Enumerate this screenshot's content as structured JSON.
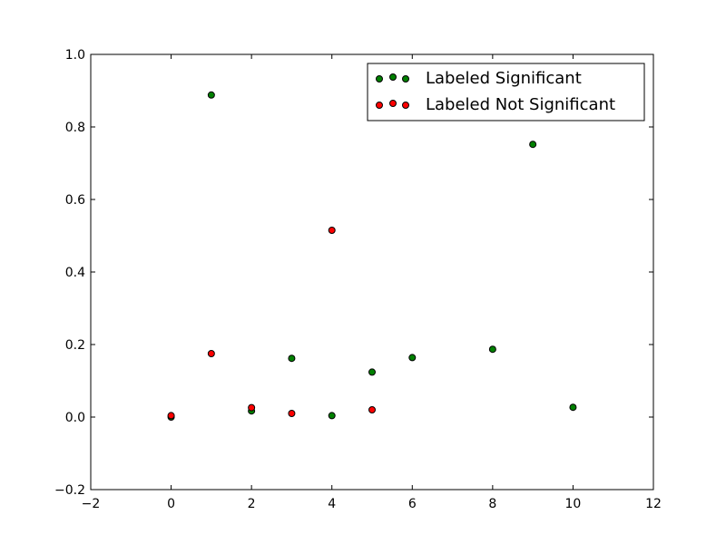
{
  "chart_data": {
    "type": "scatter",
    "title": "",
    "xlabel": "",
    "ylabel": "",
    "xlim": [
      -2,
      12
    ],
    "ylim": [
      -0.2,
      1.0
    ],
    "xticks": [
      "−2",
      "0",
      "2",
      "4",
      "6",
      "8",
      "10",
      "12"
    ],
    "yticks": [
      "−0.2",
      "0.0",
      "0.2",
      "0.4",
      "0.6",
      "0.8",
      "1.0"
    ],
    "xtick_values": [
      -2,
      0,
      2,
      4,
      6,
      8,
      10,
      12
    ],
    "ytick_values": [
      -0.2,
      0.0,
      0.2,
      0.4,
      0.6,
      0.8,
      1.0
    ],
    "grid": false,
    "legend_position": "top-right",
    "series": [
      {
        "name": "Labeled Significant",
        "color": "#008000",
        "points": [
          {
            "x": 0,
            "y": 0.0
          },
          {
            "x": 1,
            "y": 0.888
          },
          {
            "x": 2,
            "y": 0.017
          },
          {
            "x": 3,
            "y": 0.162
          },
          {
            "x": 4,
            "y": 0.004
          },
          {
            "x": 5,
            "y": 0.124
          },
          {
            "x": 6,
            "y": 0.164
          },
          {
            "x": 8,
            "y": 0.187
          },
          {
            "x": 9,
            "y": 0.752
          },
          {
            "x": 10,
            "y": 0.027
          }
        ]
      },
      {
        "name": "Labeled Not Significant",
        "color": "#ff0000",
        "points": [
          {
            "x": 0,
            "y": 0.004
          },
          {
            "x": 1,
            "y": 0.175
          },
          {
            "x": 2,
            "y": 0.026
          },
          {
            "x": 3,
            "y": 0.01
          },
          {
            "x": 4,
            "y": 0.515
          },
          {
            "x": 5,
            "y": 0.02
          }
        ]
      }
    ]
  }
}
